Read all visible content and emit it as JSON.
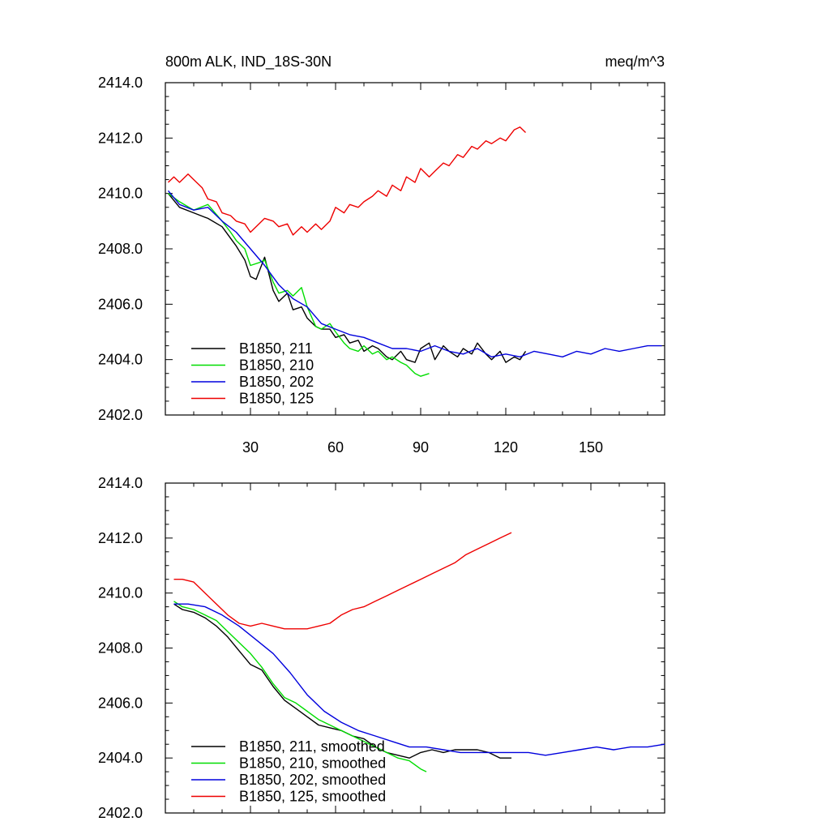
{
  "chart_data": [
    {
      "type": "line",
      "title": "800m ALK, IND_18S-30N",
      "units": "meq/m^3",
      "xlim": [
        0,
        176
      ],
      "ylim": [
        2402.0,
        2414.0
      ],
      "xticks": [
        30,
        60,
        90,
        120,
        150
      ],
      "xtick_labels": [
        "30",
        "60",
        "90",
        "120",
        "150"
      ],
      "yticks": [
        2402,
        2404,
        2406,
        2408,
        2410,
        2412,
        2414
      ],
      "ytick_labels": [
        "2402.0",
        "2404.0",
        "2406.0",
        "2408.0",
        "2410.0",
        "2412.0",
        "2414.0"
      ],
      "legend_position": "bottom-left",
      "series": [
        {
          "name": "B1850, 211",
          "color": "#000000",
          "x": [
            1,
            5,
            10,
            15,
            20,
            25,
            28,
            30,
            32,
            35,
            38,
            40,
            43,
            45,
            48,
            50,
            53,
            55,
            58,
            60,
            63,
            65,
            68,
            70,
            73,
            75,
            78,
            80,
            83,
            85,
            88,
            90,
            93,
            95,
            98,
            100,
            103,
            105,
            108,
            110,
            113,
            115,
            118,
            120,
            123,
            125,
            127
          ],
          "y": [
            2410.0,
            2409.5,
            2409.3,
            2409.1,
            2408.8,
            2408.1,
            2407.6,
            2407.0,
            2406.9,
            2407.7,
            2406.5,
            2406.1,
            2406.4,
            2405.8,
            2405.9,
            2405.5,
            2405.2,
            2405.1,
            2405.1,
            2404.8,
            2404.9,
            2404.6,
            2404.7,
            2404.3,
            2404.5,
            2404.4,
            2404.1,
            2404.0,
            2404.3,
            2404.0,
            2403.9,
            2404.4,
            2404.6,
            2404.0,
            2404.5,
            2404.3,
            2404.1,
            2404.4,
            2404.2,
            2404.6,
            2404.2,
            2404.0,
            2404.3,
            2403.9,
            2404.1,
            2404.0,
            2404.3
          ]
        },
        {
          "name": "B1850, 210",
          "color": "#00dd00",
          "x": [
            1,
            5,
            10,
            15,
            20,
            23,
            25,
            28,
            30,
            33,
            35,
            38,
            40,
            43,
            45,
            48,
            50,
            53,
            55,
            58,
            60,
            63,
            65,
            68,
            70,
            73,
            75,
            78,
            80,
            83,
            85,
            88,
            90,
            93
          ],
          "y": [
            2410.0,
            2409.7,
            2409.4,
            2409.6,
            2409.0,
            2408.6,
            2408.3,
            2408.0,
            2407.4,
            2407.5,
            2407.6,
            2406.8,
            2406.4,
            2406.5,
            2406.3,
            2406.6,
            2405.9,
            2405.2,
            2405.1,
            2405.3,
            2405.0,
            2404.6,
            2404.4,
            2404.3,
            2404.5,
            2404.2,
            2404.3,
            2404.0,
            2404.1,
            2403.9,
            2403.8,
            2403.5,
            2403.4,
            2403.5
          ]
        },
        {
          "name": "B1850, 202",
          "color": "#0000dd",
          "x": [
            1,
            5,
            10,
            15,
            20,
            25,
            30,
            35,
            40,
            45,
            50,
            55,
            60,
            65,
            70,
            75,
            80,
            85,
            90,
            95,
            100,
            105,
            110,
            115,
            120,
            125,
            130,
            135,
            140,
            145,
            150,
            155,
            160,
            165,
            170,
            175
          ],
          "y": [
            2410.1,
            2409.6,
            2409.4,
            2409.5,
            2409.0,
            2408.6,
            2408.0,
            2407.4,
            2406.7,
            2406.2,
            2405.9,
            2405.3,
            2405.1,
            2404.9,
            2404.8,
            2404.6,
            2404.4,
            2404.4,
            2404.3,
            2404.5,
            2404.3,
            2404.2,
            2404.4,
            2404.1,
            2404.2,
            2404.1,
            2404.3,
            2404.2,
            2404.1,
            2404.3,
            2404.2,
            2404.4,
            2404.3,
            2404.4,
            2404.5,
            2404.5
          ]
        },
        {
          "name": "B1850, 125",
          "color": "#ee0000",
          "x": [
            1,
            3,
            5,
            8,
            10,
            13,
            15,
            18,
            20,
            23,
            25,
            28,
            30,
            33,
            35,
            38,
            40,
            43,
            45,
            48,
            50,
            53,
            55,
            58,
            60,
            63,
            65,
            68,
            70,
            73,
            75,
            78,
            80,
            83,
            85,
            88,
            90,
            93,
            95,
            98,
            100,
            103,
            105,
            108,
            110,
            113,
            115,
            118,
            120,
            123,
            125,
            127
          ],
          "y": [
            2410.4,
            2410.6,
            2410.4,
            2410.7,
            2410.5,
            2410.2,
            2409.8,
            2409.7,
            2409.3,
            2409.2,
            2409.0,
            2408.9,
            2408.6,
            2408.9,
            2409.1,
            2409.0,
            2408.8,
            2408.9,
            2408.5,
            2408.8,
            2408.6,
            2408.9,
            2408.7,
            2409.0,
            2409.5,
            2409.3,
            2409.6,
            2409.5,
            2409.7,
            2409.9,
            2410.1,
            2409.9,
            2410.3,
            2410.1,
            2410.6,
            2410.4,
            2410.9,
            2410.6,
            2410.8,
            2411.1,
            2411.0,
            2411.4,
            2411.3,
            2411.7,
            2411.6,
            2411.9,
            2411.8,
            2412.0,
            2411.9,
            2412.3,
            2412.4,
            2412.2
          ]
        }
      ]
    },
    {
      "type": "line",
      "title": "",
      "units": "",
      "xlim": [
        0,
        176
      ],
      "ylim": [
        2402.0,
        2414.0
      ],
      "xticks": [
        30,
        60,
        90,
        120,
        150
      ],
      "xtick_labels": [],
      "yticks": [
        2402,
        2404,
        2406,
        2408,
        2410,
        2412,
        2414
      ],
      "ytick_labels": [
        "2402.0",
        "2404.0",
        "2406.0",
        "2408.0",
        "2410.0",
        "2412.0",
        "2414.0"
      ],
      "legend_position": "bottom-left",
      "series": [
        {
          "name": "B1850, 211, smoothed",
          "color": "#000000",
          "x": [
            3,
            6,
            10,
            14,
            18,
            22,
            26,
            30,
            34,
            38,
            42,
            46,
            50,
            54,
            58,
            62,
            66,
            70,
            74,
            78,
            82,
            86,
            90,
            94,
            98,
            102,
            106,
            110,
            114,
            118,
            122
          ],
          "y": [
            2409.6,
            2409.4,
            2409.3,
            2409.1,
            2408.8,
            2408.4,
            2407.9,
            2407.4,
            2407.2,
            2406.6,
            2406.1,
            2405.8,
            2405.5,
            2405.2,
            2405.1,
            2405.0,
            2404.8,
            2404.7,
            2404.4,
            2404.2,
            2404.1,
            2404.0,
            2404.2,
            2404.3,
            2404.2,
            2404.3,
            2404.3,
            2404.3,
            2404.2,
            2404.0,
            2404.0
          ]
        },
        {
          "name": "B1850, 210, smoothed",
          "color": "#00dd00",
          "x": [
            3,
            6,
            10,
            14,
            18,
            22,
            26,
            30,
            34,
            38,
            42,
            46,
            50,
            54,
            58,
            62,
            66,
            70,
            74,
            78,
            82,
            86,
            90,
            92
          ],
          "y": [
            2409.7,
            2409.5,
            2409.4,
            2409.2,
            2409.0,
            2408.6,
            2408.2,
            2407.8,
            2407.3,
            2406.7,
            2406.2,
            2406.0,
            2405.7,
            2405.4,
            2405.2,
            2405.0,
            2404.8,
            2404.6,
            2404.4,
            2404.2,
            2404.0,
            2403.9,
            2403.6,
            2403.5
          ]
        },
        {
          "name": "B1850, 202, smoothed",
          "color": "#0000dd",
          "x": [
            3,
            8,
            14,
            20,
            26,
            32,
            38,
            44,
            50,
            56,
            62,
            68,
            74,
            80,
            86,
            92,
            98,
            104,
            110,
            116,
            122,
            128,
            134,
            140,
            146,
            152,
            158,
            164,
            170,
            176
          ],
          "y": [
            2409.6,
            2409.6,
            2409.5,
            2409.2,
            2408.8,
            2408.3,
            2407.8,
            2407.1,
            2406.3,
            2405.7,
            2405.3,
            2405.0,
            2404.8,
            2404.6,
            2404.4,
            2404.4,
            2404.3,
            2404.2,
            2404.2,
            2404.2,
            2404.2,
            2404.2,
            2404.1,
            2404.2,
            2404.3,
            2404.4,
            2404.3,
            2404.4,
            2404.4,
            2404.5
          ]
        },
        {
          "name": "B1850, 125, smoothed",
          "color": "#ee0000",
          "x": [
            3,
            6,
            10,
            14,
            18,
            22,
            26,
            30,
            34,
            38,
            42,
            46,
            50,
            54,
            58,
            62,
            66,
            70,
            74,
            78,
            82,
            86,
            90,
            94,
            98,
            102,
            106,
            110,
            114,
            118,
            122
          ],
          "y": [
            2410.5,
            2410.5,
            2410.4,
            2410.0,
            2409.6,
            2409.2,
            2408.9,
            2408.8,
            2408.9,
            2408.8,
            2408.7,
            2408.7,
            2408.7,
            2408.8,
            2408.9,
            2409.2,
            2409.4,
            2409.5,
            2409.7,
            2409.9,
            2410.1,
            2410.3,
            2410.5,
            2410.7,
            2410.9,
            2411.1,
            2411.4,
            2411.6,
            2411.8,
            2412.0,
            2412.2
          ]
        }
      ]
    }
  ]
}
